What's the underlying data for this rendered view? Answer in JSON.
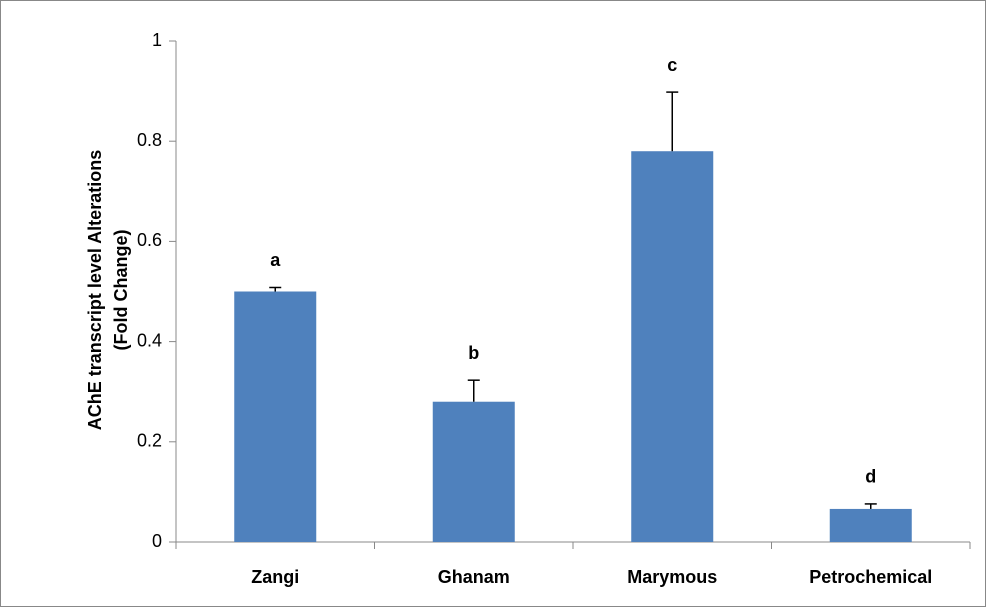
{
  "chart_data": {
    "type": "bar",
    "y_label": [
      "AChE transcript level Alterations",
      "(Fold Change)"
    ],
    "categories": [
      "Zangi",
      "Ghanam",
      "Marymous",
      "Petrochemical"
    ],
    "values": [
      0.5,
      0.28,
      0.78,
      0.066
    ],
    "errors": [
      0.008,
      0.043,
      0.118,
      0.01
    ],
    "annotations": [
      "a",
      "b",
      "c",
      "d"
    ],
    "color": "#4f81bd",
    "ylim": [
      0,
      1
    ],
    "yticks": [
      0,
      0.2,
      0.4,
      0.6,
      0.8,
      1
    ],
    "grid": false
  }
}
